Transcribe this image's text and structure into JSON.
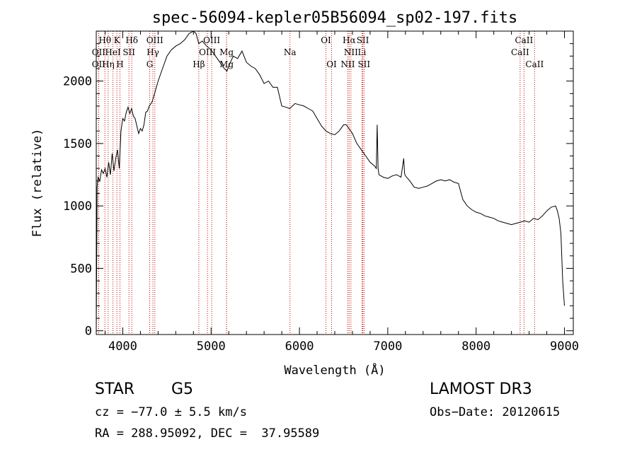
{
  "chart_data": {
    "type": "line",
    "title": "spec-56094-kepler05B56094_sp02-197.fits",
    "xlabel": "Wavelength (Å)",
    "ylabel": "Flux (relative)",
    "xlim": [
      3700,
      9100
    ],
    "ylim": [
      -30,
      2400
    ],
    "xticks": [
      4000,
      5000,
      6000,
      7000,
      8000,
      9000
    ],
    "yticks": [
      0,
      500,
      1000,
      1500,
      2000
    ],
    "line_color": "#000000",
    "marker_color": "#cc0000",
    "series": [
      {
        "name": "spectrum",
        "x": [
          3700,
          3710,
          3720,
          3740,
          3760,
          3780,
          3800,
          3820,
          3840,
          3860,
          3880,
          3900,
          3920,
          3940,
          3960,
          3980,
          4000,
          4020,
          4040,
          4060,
          4080,
          4100,
          4120,
          4140,
          4160,
          4180,
          4200,
          4220,
          4240,
          4260,
          4280,
          4300,
          4330,
          4360,
          4400,
          4450,
          4500,
          4550,
          4600,
          4650,
          4700,
          4750,
          4800,
          4830,
          4860,
          4900,
          4950,
          5000,
          5050,
          5100,
          5150,
          5180,
          5200,
          5250,
          5300,
          5350,
          5400,
          5450,
          5500,
          5550,
          5600,
          5650,
          5700,
          5750,
          5800,
          5850,
          5890,
          5950,
          6000,
          6050,
          6100,
          6150,
          6200,
          6250,
          6300,
          6350,
          6400,
          6450,
          6500,
          6530,
          6560,
          6600,
          6650,
          6700,
          6750,
          6800,
          6850,
          6870,
          6880,
          6890,
          6900,
          6950,
          7000,
          7050,
          7100,
          7150,
          7180,
          7190,
          7200,
          7250,
          7300,
          7350,
          7400,
          7450,
          7500,
          7550,
          7600,
          7650,
          7700,
          7750,
          7800,
          7850,
          7900,
          7950,
          8000,
          8050,
          8100,
          8150,
          8200,
          8250,
          8300,
          8350,
          8400,
          8450,
          8500,
          8550,
          8600,
          8650,
          8700,
          8750,
          8800,
          8850,
          8900,
          8920,
          8940,
          8960,
          8980,
          9000
        ],
        "values": [
          0,
          1150,
          1230,
          1200,
          1290,
          1260,
          1300,
          1230,
          1350,
          1250,
          1420,
          1280,
          1380,
          1450,
          1300,
          1600,
          1700,
          1680,
          1750,
          1790,
          1740,
          1780,
          1720,
          1700,
          1640,
          1580,
          1620,
          1600,
          1650,
          1750,
          1760,
          1800,
          1830,
          1900,
          2000,
          2100,
          2200,
          2250,
          2280,
          2300,
          2330,
          2380,
          2400,
          2380,
          2300,
          2320,
          2280,
          2250,
          2200,
          2150,
          2100,
          2080,
          2120,
          2200,
          2180,
          2240,
          2150,
          2120,
          2100,
          2050,
          1980,
          2000,
          1950,
          1950,
          1800,
          1790,
          1780,
          1820,
          1810,
          1800,
          1780,
          1760,
          1700,
          1640,
          1600,
          1580,
          1570,
          1600,
          1650,
          1650,
          1620,
          1580,
          1500,
          1450,
          1400,
          1350,
          1320,
          1300,
          1650,
          1300,
          1250,
          1230,
          1220,
          1240,
          1250,
          1230,
          1380,
          1260,
          1240,
          1200,
          1150,
          1140,
          1150,
          1160,
          1180,
          1200,
          1210,
          1200,
          1210,
          1190,
          1180,
          1050,
          1000,
          970,
          950,
          940,
          920,
          910,
          900,
          880,
          870,
          860,
          850,
          860,
          870,
          880,
          870,
          900,
          890,
          920,
          960,
          990,
          1000,
          960,
          900,
          780,
          400,
          200
        ]
      }
    ],
    "line_markers": [
      {
        "label": "Hθ",
        "x": 3798,
        "row": 0
      },
      {
        "label": "K",
        "x": 3934,
        "row": 0
      },
      {
        "label": "Hδ",
        "x": 4102,
        "row": 0
      },
      {
        "label": "OIII",
        "x": 4363,
        "row": 0
      },
      {
        "label": "OIII",
        "x": 5007,
        "row": 0
      },
      {
        "label": "OI",
        "x": 6300,
        "row": 0
      },
      {
        "label": "Hα",
        "x": 6563,
        "row": 0
      },
      {
        "label": "SII",
        "x": 6717,
        "row": 0
      },
      {
        "label": "CaII",
        "x": 8542,
        "row": 0
      },
      {
        "label": "OII",
        "x": 3727,
        "row": 1
      },
      {
        "label": "HeI",
        "x": 3889,
        "row": 1
      },
      {
        "label": "SII",
        "x": 4070,
        "row": 1
      },
      {
        "label": "Hγ",
        "x": 4341,
        "row": 1
      },
      {
        "label": "OIII",
        "x": 4959,
        "row": 1
      },
      {
        "label": "Mg",
        "x": 5175,
        "row": 1
      },
      {
        "label": "Na",
        "x": 5893,
        "row": 1
      },
      {
        "label": "NII",
        "x": 6583,
        "row": 1
      },
      {
        "label": "Li",
        "x": 6708,
        "row": 1
      },
      {
        "label": "CaII",
        "x": 8498,
        "row": 1
      },
      {
        "label": "OII",
        "x": 3727,
        "row": 2
      },
      {
        "label": "Hη",
        "x": 3835,
        "row": 2
      },
      {
        "label": "H",
        "x": 3968,
        "row": 2
      },
      {
        "label": "G",
        "x": 4305,
        "row": 2
      },
      {
        "label": "Hβ",
        "x": 4861,
        "row": 2
      },
      {
        "label": "Mg",
        "x": 5175,
        "row": 2
      },
      {
        "label": "OI",
        "x": 6364,
        "row": 2
      },
      {
        "label": "NII",
        "x": 6548,
        "row": 2
      },
      {
        "label": "SII",
        "x": 6731,
        "row": 2
      },
      {
        "label": "CaII",
        "x": 8662,
        "row": 2
      }
    ]
  },
  "info": {
    "object_type": "STAR",
    "subclass": "G5",
    "survey": "LAMOST DR3",
    "cz": "cz = −77.0 ± 5.5 km/s",
    "obs_date": "Obs−Date: 20120615",
    "coords": "RA = 288.95092, DEC =  37.95589"
  }
}
